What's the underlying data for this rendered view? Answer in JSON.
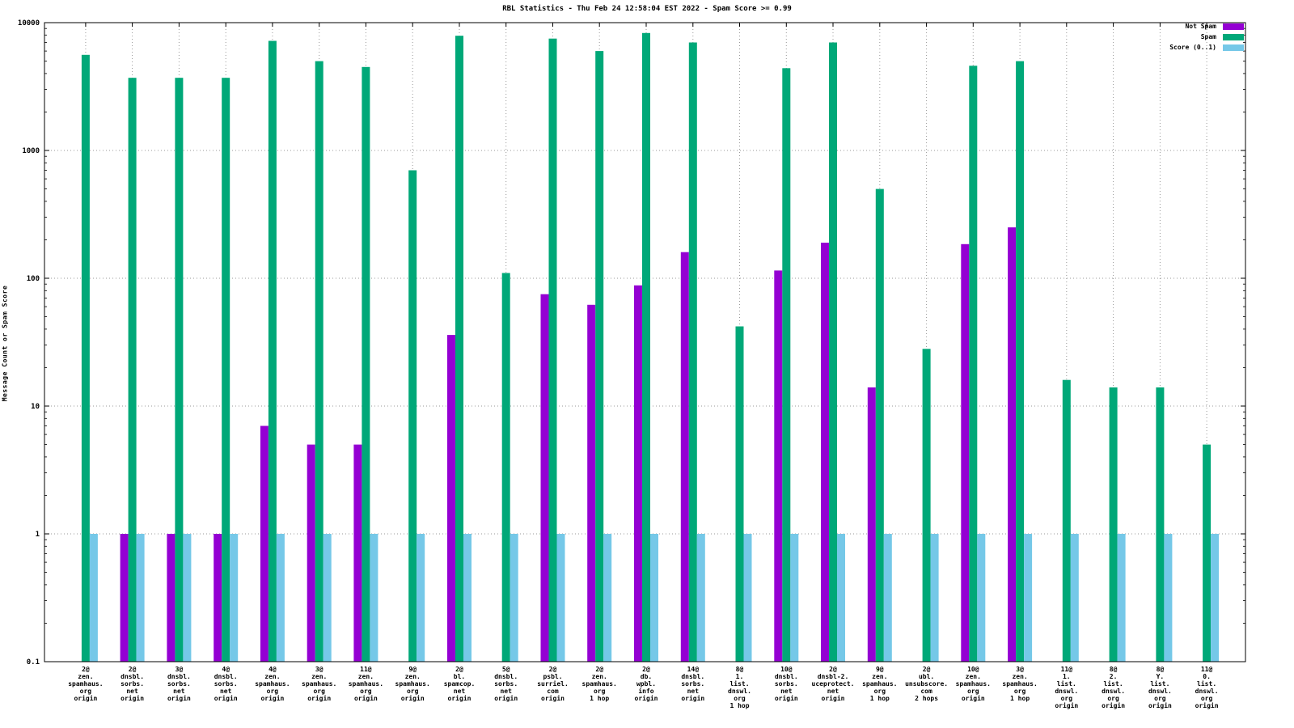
{
  "title": "RBL Statistics - Thu Feb 24 12:58:04 EST 2022 - Spam Score >= 0.99",
  "ylabel": "Message Count or Spam Score",
  "legend": [
    {
      "label": "Not Spam",
      "color": "#9400d3"
    },
    {
      "label": "Spam",
      "color": "#00a878"
    },
    {
      "label": "Score (0..1)",
      "color": "#75c8e8"
    }
  ],
  "yticks": [
    "10000",
    "1000",
    "100",
    "10",
    "1",
    "0.1"
  ],
  "chart_data": {
    "type": "bar",
    "log_y": true,
    "ylim": [
      0.1,
      10000
    ],
    "grid": true,
    "legend_position": "top-right",
    "xlabel": "",
    "ylabel": "Message Count or Spam Score",
    "title": "RBL Statistics - Thu Feb 24 12:58:04 EST 2022 - Spam Score >= 0.99",
    "categories": [
      [
        "2@",
        "zen.",
        "spamhaus.",
        "org",
        "origin"
      ],
      [
        "2@",
        "dnsbl.",
        "sorbs.",
        "net",
        "origin"
      ],
      [
        "3@",
        "dnsbl.",
        "sorbs.",
        "net",
        "origin"
      ],
      [
        "4@",
        "dnsbl.",
        "sorbs.",
        "net",
        "origin"
      ],
      [
        "4@",
        "zen.",
        "spamhaus.",
        "org",
        "origin"
      ],
      [
        "3@",
        "zen.",
        "spamhaus.",
        "org",
        "origin"
      ],
      [
        "11@",
        "zen.",
        "spamhaus.",
        "org",
        "origin"
      ],
      [
        "9@",
        "zen.",
        "spamhaus.",
        "org",
        "origin"
      ],
      [
        "2@",
        "bl.",
        "spamcop.",
        "net",
        "origin"
      ],
      [
        "5@",
        "dnsbl.",
        "sorbs.",
        "net",
        "origin"
      ],
      [
        "2@",
        "psbl.",
        "surriel.",
        "com",
        "origin"
      ],
      [
        "2@",
        "zen.",
        "spamhaus.",
        "org",
        "1 hop"
      ],
      [
        "2@",
        "db.",
        "wpbl.",
        "info",
        "origin"
      ],
      [
        "14@",
        "dnsbl.",
        "sorbs.",
        "net",
        "origin"
      ],
      [
        "8@",
        "1.",
        "list.",
        "dnswl.",
        "org",
        "1 hop"
      ],
      [
        "10@",
        "dnsbl.",
        "sorbs.",
        "net",
        "origin"
      ],
      [
        "2@",
        "dnsbl-2.",
        "uceprotect.",
        "net",
        "origin"
      ],
      [
        "9@",
        "zen.",
        "spamhaus.",
        "org",
        "1 hop"
      ],
      [
        "2@",
        "ubl.",
        "unsubscore.",
        "com",
        "2 hops"
      ],
      [
        "10@",
        "zen.",
        "spamhaus.",
        "org",
        "origin"
      ],
      [
        "3@",
        "zen.",
        "spamhaus.",
        "org",
        "1 hop"
      ],
      [
        "11@",
        "1.",
        "list.",
        "dnswl.",
        "org",
        "origin"
      ],
      [
        "8@",
        "2.",
        "list.",
        "dnswl.",
        "org",
        "origin"
      ],
      [
        "8@",
        "Y.",
        "list.",
        "dnswl.",
        "org",
        "origin"
      ],
      [
        "11@",
        "0.",
        "list.",
        "dnswl.",
        "org",
        "origin"
      ]
    ],
    "series": [
      {
        "name": "Not Spam",
        "color": "#9400d3",
        "values": [
          null,
          1,
          1,
          1,
          7,
          5,
          5,
          null,
          36,
          null,
          75,
          62,
          88,
          160,
          null,
          115,
          190,
          14,
          null,
          185,
          250,
          null,
          null,
          null,
          null
        ]
      },
      {
        "name": "Spam",
        "color": "#00a878",
        "values": [
          5600,
          3700,
          3700,
          3700,
          7200,
          5000,
          4500,
          700,
          7900,
          110,
          7500,
          6000,
          8300,
          7000,
          42,
          4400,
          7000,
          500,
          28,
          4600,
          5000,
          16,
          14,
          14,
          5
        ]
      },
      {
        "name": "Score (0..1)",
        "color": "#75c8e8",
        "values": [
          1,
          1,
          1,
          1,
          1,
          1,
          1,
          1,
          1,
          1,
          1,
          1,
          1,
          1,
          1,
          1,
          1,
          1,
          1,
          1,
          1,
          1,
          1,
          1,
          1
        ]
      }
    ]
  }
}
